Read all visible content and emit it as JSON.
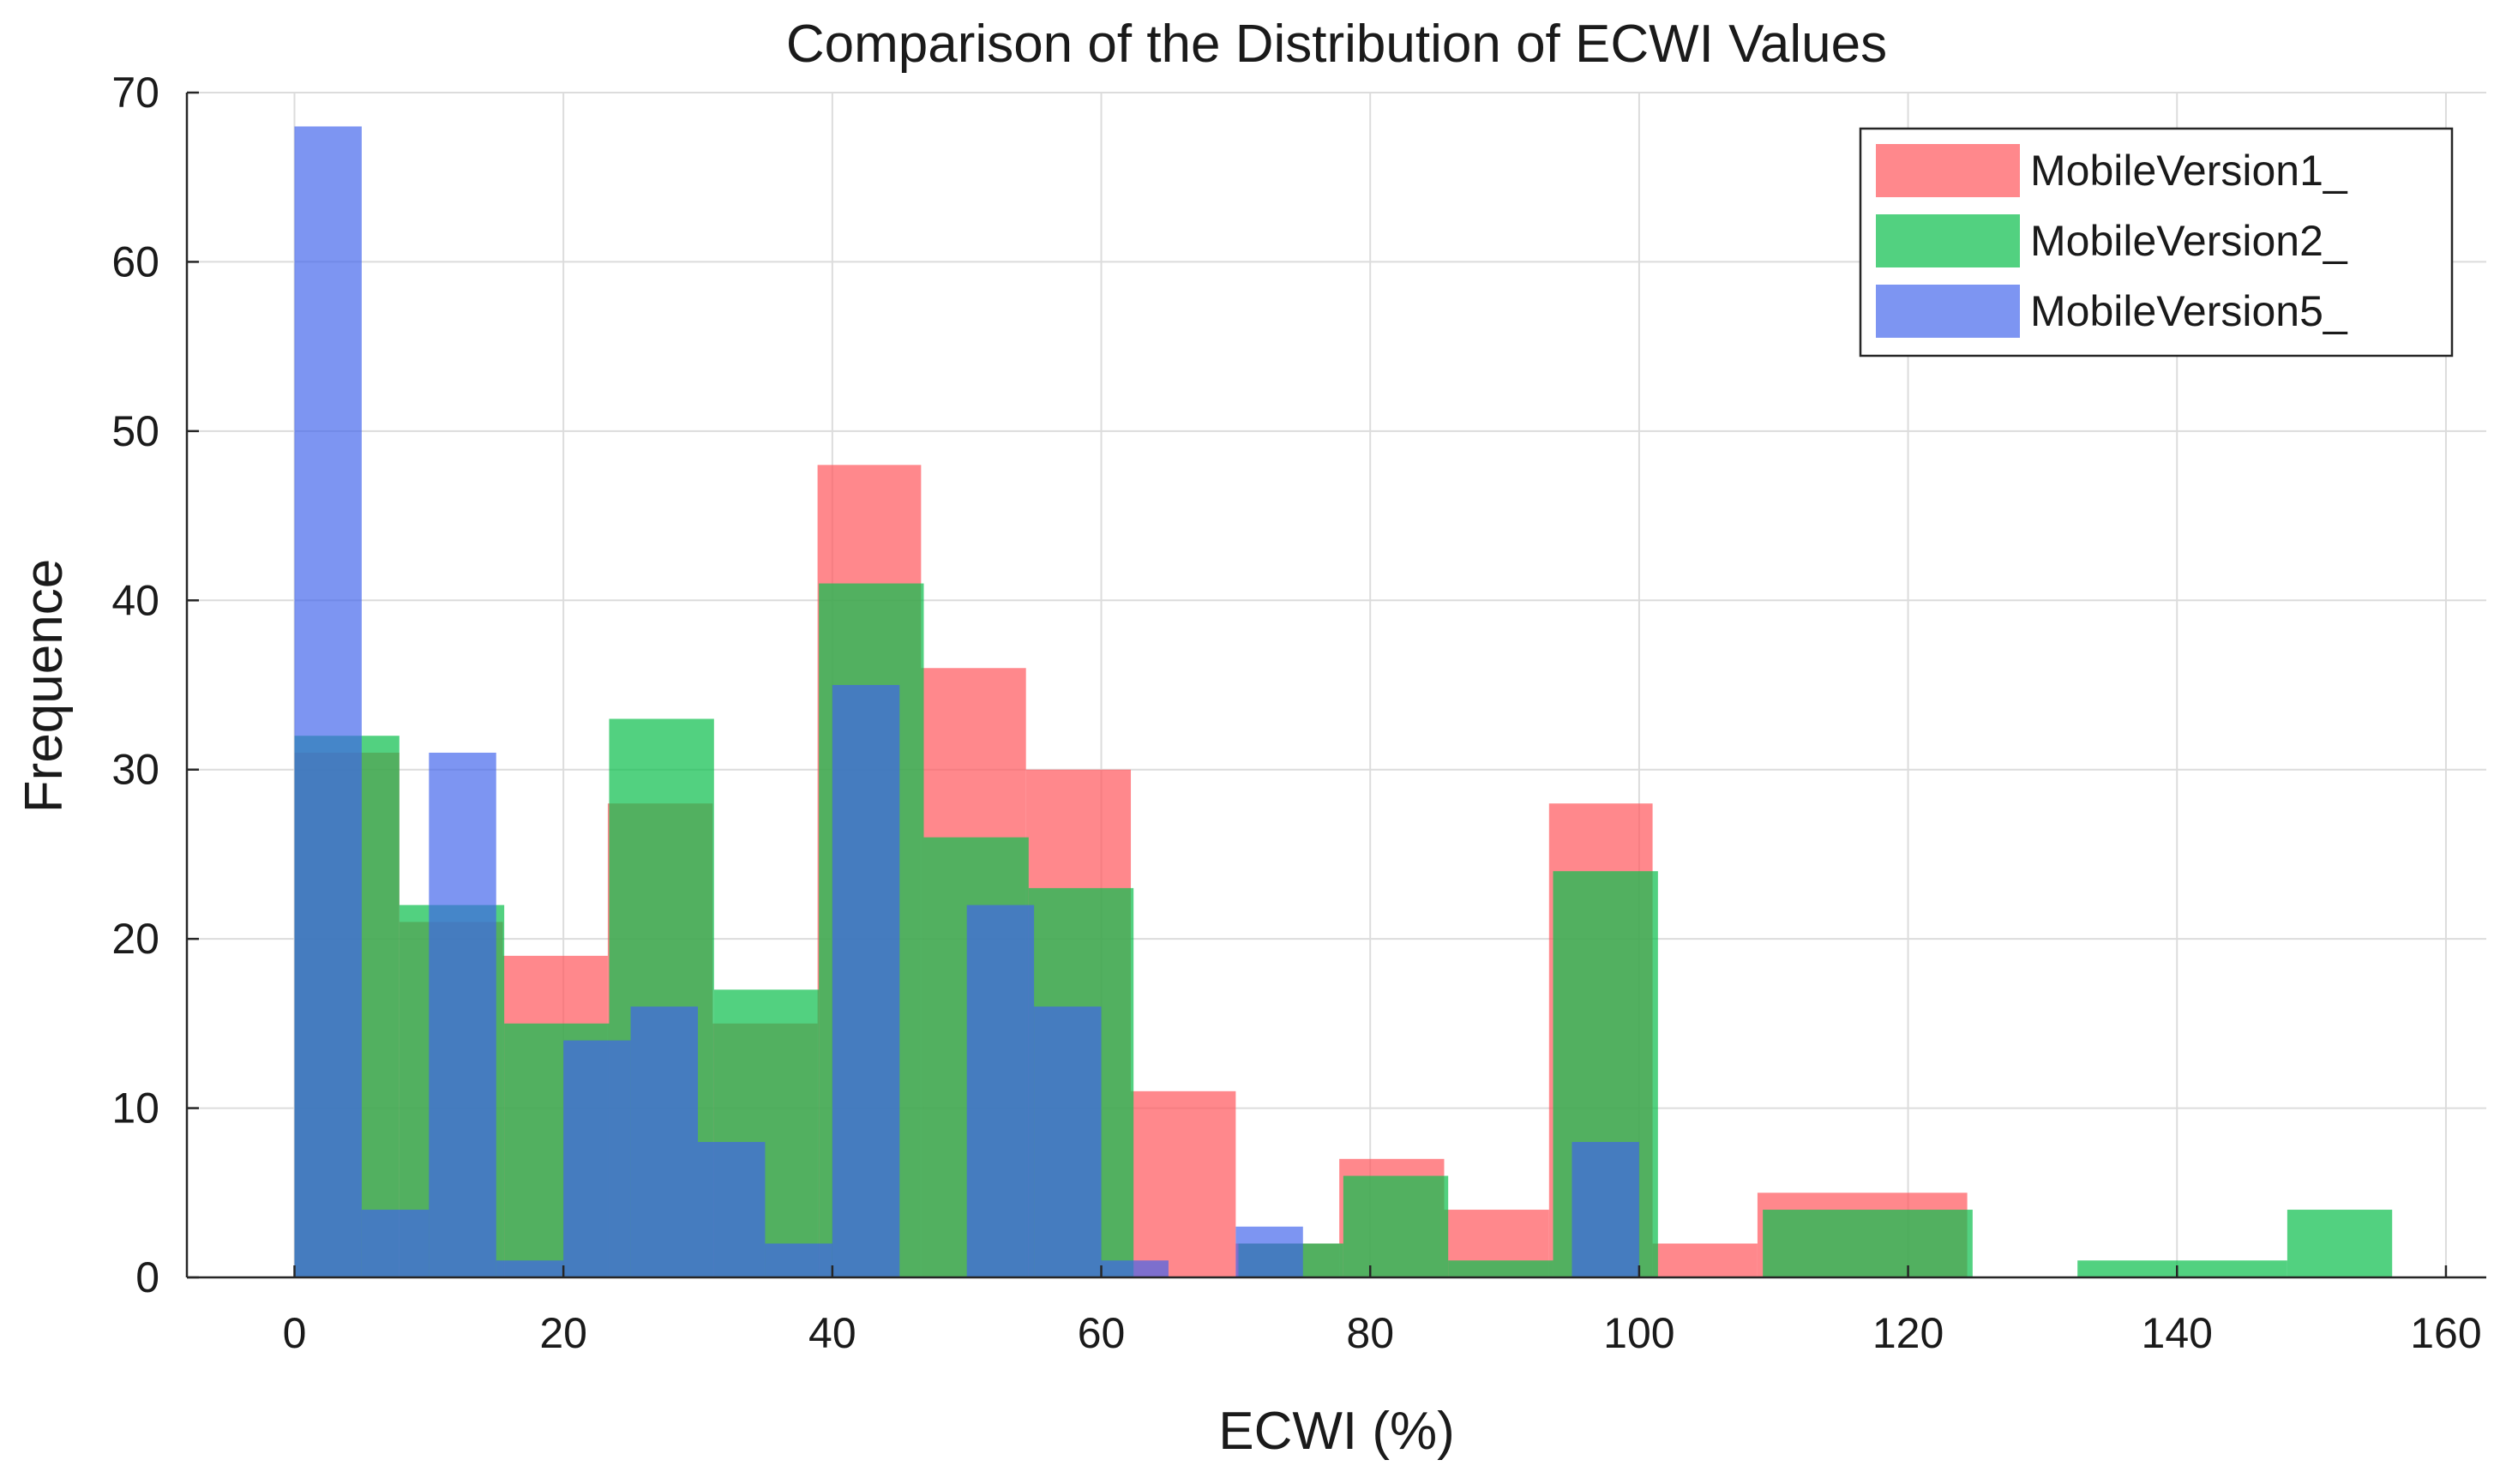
{
  "chart_data": {
    "type": "bar",
    "subtype": "overlapping-histogram",
    "title": "Comparison of the Distribution of ECWI Values",
    "xlabel": "ECWI (%)",
    "ylabel": "Frequence",
    "xlim": [
      -8,
      163
    ],
    "ylim": [
      0,
      70
    ],
    "xticks": [
      0,
      20,
      40,
      60,
      80,
      100,
      120,
      140,
      160
    ],
    "yticks": [
      0,
      10,
      20,
      30,
      40,
      50,
      60,
      70
    ],
    "grid": true,
    "legend_position": "top-right",
    "series": [
      {
        "name": "MobileVersion1_",
        "color": "#ff5a5f",
        "opacity": 0.72,
        "bins": [
          {
            "x0": 0.0,
            "x1": 7.8,
            "count": 31
          },
          {
            "x0": 7.8,
            "x1": 15.5,
            "count": 21
          },
          {
            "x0": 15.5,
            "x1": 23.3,
            "count": 19
          },
          {
            "x0": 23.3,
            "x1": 31.1,
            "count": 28
          },
          {
            "x0": 31.1,
            "x1": 38.9,
            "count": 15
          },
          {
            "x0": 38.9,
            "x1": 46.6,
            "count": 48
          },
          {
            "x0": 46.6,
            "x1": 54.4,
            "count": 36
          },
          {
            "x0": 54.4,
            "x1": 62.2,
            "count": 30
          },
          {
            "x0": 62.2,
            "x1": 70.0,
            "count": 11
          },
          {
            "x0": 70.0,
            "x1": 77.7,
            "count": 2
          },
          {
            "x0": 77.7,
            "x1": 85.5,
            "count": 7
          },
          {
            "x0": 85.5,
            "x1": 93.3,
            "count": 4
          },
          {
            "x0": 93.3,
            "x1": 101.0,
            "count": 28
          },
          {
            "x0": 101.0,
            "x1": 108.8,
            "count": 2
          },
          {
            "x0": 108.8,
            "x1": 124.4,
            "count": 5
          }
        ]
      },
      {
        "name": "MobileVersion2_",
        "color": "#0fbf4f",
        "opacity": 0.72,
        "bins": [
          {
            "x0": 0.0,
            "x1": 7.8,
            "count": 32
          },
          {
            "x0": 7.8,
            "x1": 15.6,
            "count": 22
          },
          {
            "x0": 15.6,
            "x1": 23.4,
            "count": 15
          },
          {
            "x0": 23.4,
            "x1": 31.2,
            "count": 33
          },
          {
            "x0": 31.2,
            "x1": 39.0,
            "count": 17
          },
          {
            "x0": 39.0,
            "x1": 46.8,
            "count": 41
          },
          {
            "x0": 46.8,
            "x1": 54.6,
            "count": 26
          },
          {
            "x0": 54.6,
            "x1": 62.4,
            "count": 23
          },
          {
            "x0": 70.2,
            "x1": 78.0,
            "count": 2
          },
          {
            "x0": 78.0,
            "x1": 85.8,
            "count": 6
          },
          {
            "x0": 85.8,
            "x1": 93.6,
            "count": 1
          },
          {
            "x0": 93.6,
            "x1": 101.4,
            "count": 24
          },
          {
            "x0": 109.2,
            "x1": 124.8,
            "count": 4
          },
          {
            "x0": 132.6,
            "x1": 148.2,
            "count": 1
          },
          {
            "x0": 148.2,
            "x1": 156.0,
            "count": 4
          }
        ]
      },
      {
        "name": "MobileVersion5_",
        "color": "#3f63ec",
        "opacity": 0.68,
        "bins": [
          {
            "x0": 0.0,
            "x1": 5.0,
            "count": 68
          },
          {
            "x0": 5.0,
            "x1": 10.0,
            "count": 4
          },
          {
            "x0": 10.0,
            "x1": 15.0,
            "count": 31
          },
          {
            "x0": 15.0,
            "x1": 20.0,
            "count": 1
          },
          {
            "x0": 20.0,
            "x1": 25.0,
            "count": 14
          },
          {
            "x0": 25.0,
            "x1": 30.0,
            "count": 16
          },
          {
            "x0": 30.0,
            "x1": 35.0,
            "count": 8
          },
          {
            "x0": 35.0,
            "x1": 40.0,
            "count": 2
          },
          {
            "x0": 40.0,
            "x1": 45.0,
            "count": 35
          },
          {
            "x0": 50.0,
            "x1": 55.0,
            "count": 22
          },
          {
            "x0": 55.0,
            "x1": 60.0,
            "count": 16
          },
          {
            "x0": 60.0,
            "x1": 65.0,
            "count": 1
          },
          {
            "x0": 70.0,
            "x1": 75.0,
            "count": 3
          },
          {
            "x0": 95.0,
            "x1": 100.0,
            "count": 8
          }
        ]
      }
    ]
  }
}
